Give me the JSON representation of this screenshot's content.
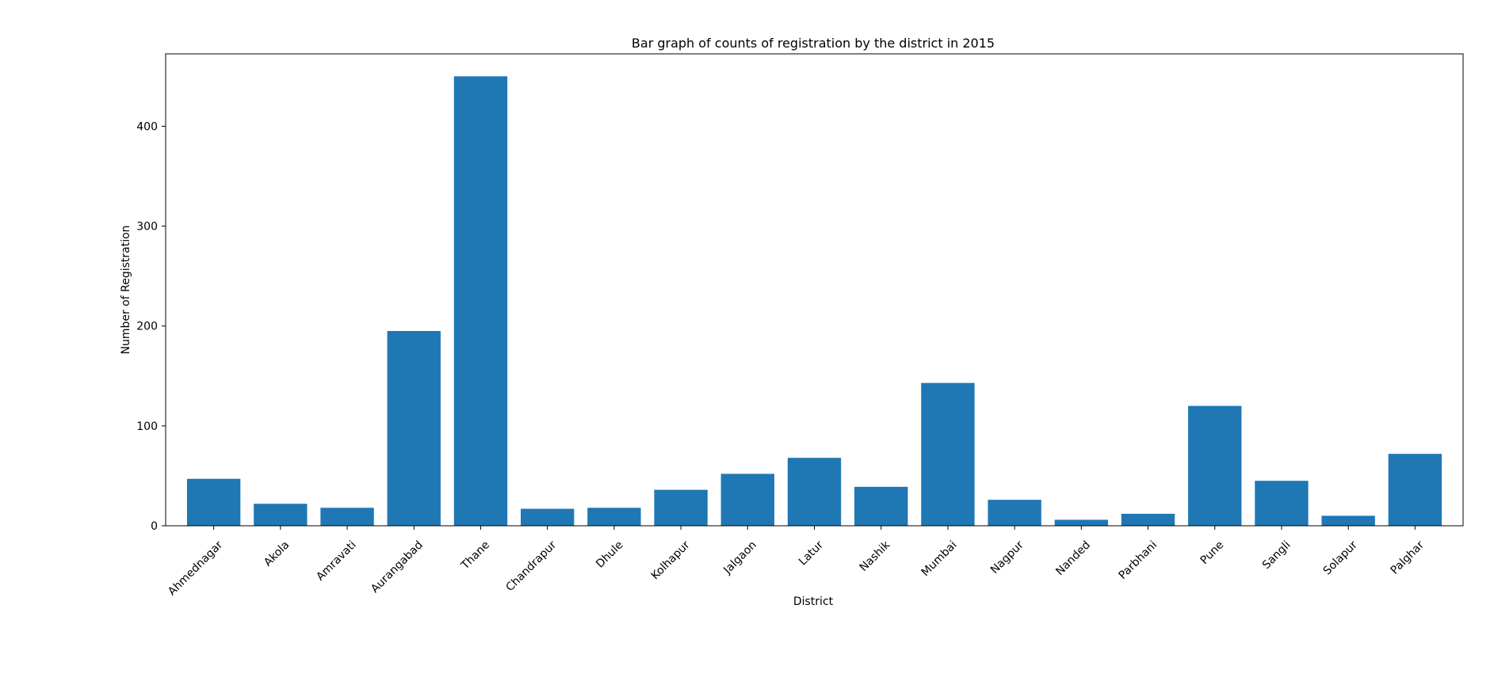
{
  "chart_data": {
    "type": "bar",
    "title": "Bar graph of counts of registration by the district in 2015",
    "xlabel": "District",
    "ylabel": "Number of Registration",
    "categories": [
      "Ahmednagar",
      "Akola",
      "Amravati",
      "Aurangabad",
      "Thane",
      "Chandrapur",
      "Dhule",
      "Kolhapur",
      "Jalgaon",
      "Latur",
      "Nashik",
      "Mumbai",
      "Nagpur",
      "Nanded",
      "Parbhani",
      "Pune",
      "Sangli",
      "Solapur",
      "Palghar"
    ],
    "values": [
      47,
      22,
      18,
      195,
      450,
      17,
      18,
      36,
      52,
      68,
      39,
      143,
      26,
      6,
      12,
      120,
      45,
      10,
      72
    ],
    "yticks": [
      0,
      100,
      200,
      300,
      400
    ],
    "ylim": [
      0,
      472.5
    ],
    "grid": false,
    "bar_color": "#1f77b4"
  }
}
